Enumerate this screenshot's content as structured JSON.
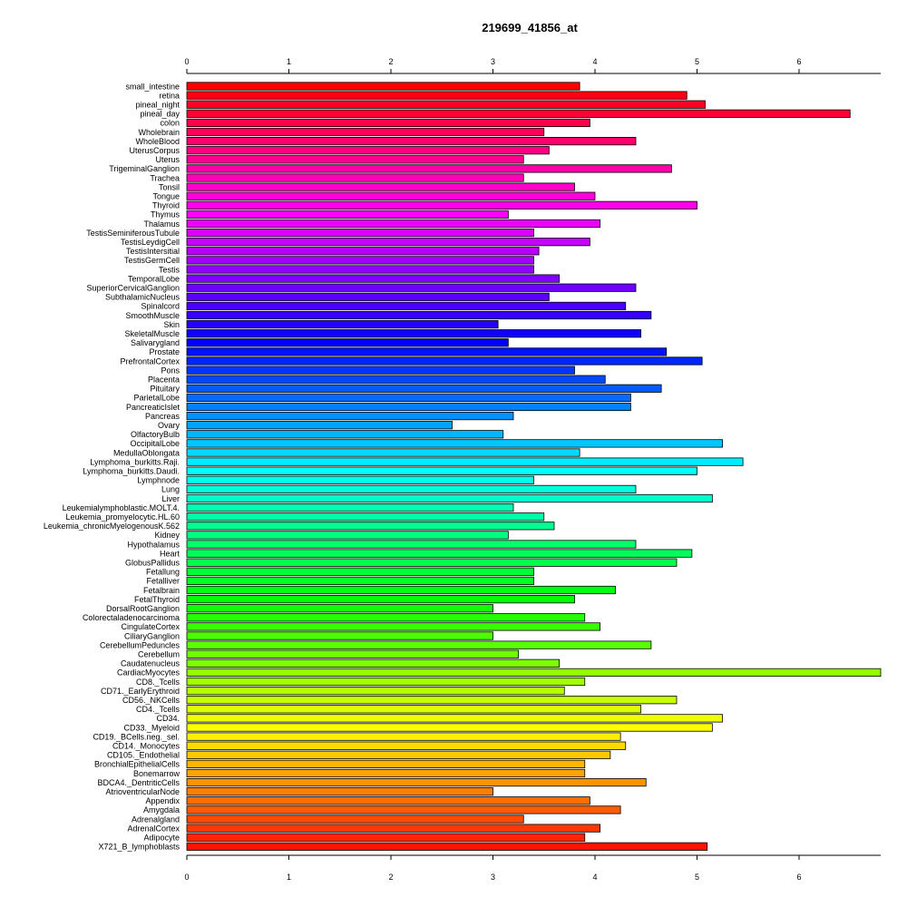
{
  "chart_data": {
    "type": "bar",
    "orientation": "horizontal",
    "title": "219699_41856_at",
    "xlabel": "",
    "ylabel": "",
    "xlim": [
      0,
      6.8
    ],
    "x_ticks": [
      0,
      1,
      2,
      3,
      4,
      5,
      6
    ],
    "axes": [
      "top",
      "bottom"
    ],
    "grid": false,
    "legend": "none",
    "color_scheme": "rainbow",
    "categories": [
      "small_intestine",
      "retina",
      "pineal_night",
      "pineal_day",
      "colon",
      "Wholebrain",
      "WholeBlood",
      "UterusCorpus",
      "Uterus",
      "TrigeminalGanglion",
      "Trachea",
      "Tonsil",
      "Tongue",
      "Thyroid",
      "Thymus",
      "Thalamus",
      "TestisSeminiferousTubule",
      "TestisLeydigCell",
      "TestisIntersitial",
      "TestisGermCell",
      "Testis",
      "TemporalLobe",
      "SuperiorCervicalGanglion",
      "SubthalamicNucleus",
      "Spinalcord",
      "SmoothMuscle",
      "Skin",
      "SkeletalMuscle",
      "Salivarygland",
      "Prostate",
      "PrefrontalCortex",
      "Pons",
      "Placenta",
      "Pituitary",
      "ParietalLobe",
      "PancreaticIslet",
      "Pancreas",
      "Ovary",
      "OlfactoryBulb",
      "OccipitalLobe",
      "MedullaOblongata",
      "Lymphoma_burkitts.Raji.",
      "Lymphoma_burkitts.Daudi.",
      "Lymphnode",
      "Lung",
      "Liver",
      "Leukemialymphoblastic.MOLT.4.",
      "Leukemia_promyelocytic.HL.60",
      "Leukemia_chronicMyelogenousK.562",
      "Kidney",
      "Hypothalamus",
      "Heart",
      "GlobusPallidus",
      "Fetallung",
      "Fetalliver",
      "Fetalbrain",
      "FetalThyroid",
      "DorsalRootGanglion",
      "Colorectaladenocarcinoma",
      "CingulateCortex",
      "CiliaryGanglion",
      "CerebellumPeduncles",
      "Cerebellum",
      "Caudatenucleus",
      "CardiacMyocytes",
      "CD8._Tcells",
      "CD71._EarlyErythroid",
      "CD56._NKCells",
      "CD4._Tcells",
      "CD34.",
      "CD33._Myeloid",
      "CD19._BCells.neg._sel.",
      "CD14._Monocytes",
      "CD105._Endothelial",
      "BronchialEpithelialCells",
      "Bonemarrow",
      "BDCA4._DentriticCells",
      "AtrioventricularNode",
      "Appendix",
      "Amygdala",
      "Adrenalgland",
      "AdrenalCortex",
      "Adipocyte",
      "X721_B_lymphoblasts"
    ],
    "values": [
      3.85,
      4.9,
      5.08,
      6.5,
      3.95,
      3.5,
      4.4,
      3.55,
      3.3,
      4.75,
      3.3,
      3.8,
      4.0,
      5.0,
      3.15,
      4.05,
      3.4,
      3.95,
      3.45,
      3.4,
      3.4,
      3.65,
      4.4,
      3.55,
      4.3,
      4.55,
      3.05,
      4.45,
      3.15,
      4.7,
      5.05,
      3.8,
      4.1,
      4.65,
      4.35,
      4.35,
      3.2,
      2.6,
      3.1,
      5.25,
      3.85,
      5.45,
      5.0,
      3.4,
      4.4,
      5.15,
      3.2,
      3.5,
      3.6,
      3.15,
      4.4,
      4.95,
      4.8,
      3.4,
      3.4,
      4.2,
      3.8,
      3.0,
      3.9,
      4.05,
      3.0,
      4.55,
      3.25,
      3.65,
      6.8,
      3.9,
      3.7,
      4.8,
      4.45,
      5.25,
      5.15,
      4.25,
      4.3,
      4.15,
      3.9,
      3.9,
      4.5,
      3.0,
      3.95,
      4.25,
      3.3,
      4.05,
      3.9,
      5.1
    ]
  }
}
